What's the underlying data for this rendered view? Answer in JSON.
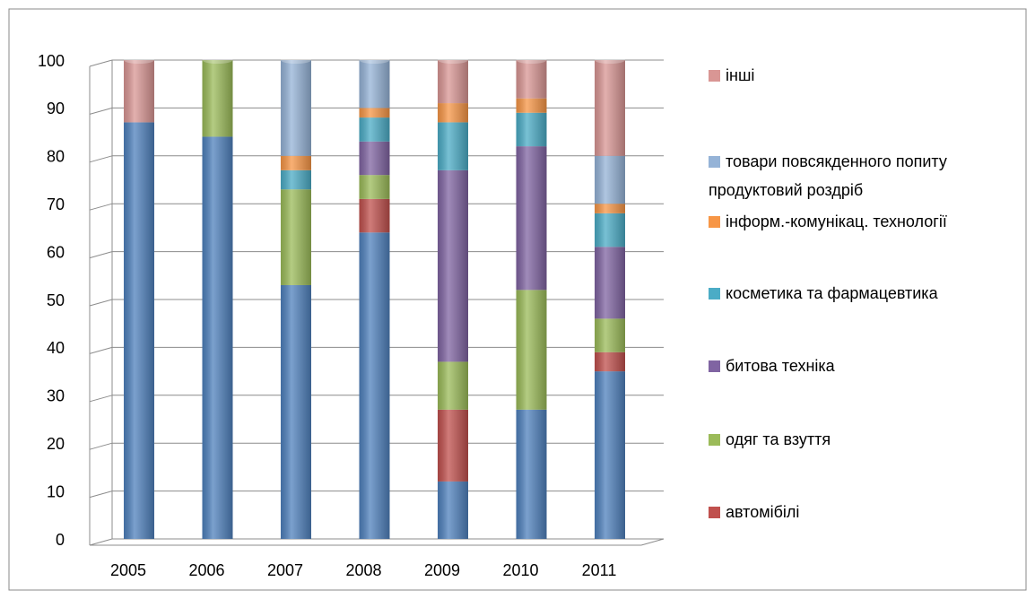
{
  "chart_data": {
    "type": "bar",
    "stacked": true,
    "categories": [
      "2005",
      "2006",
      "2007",
      "2008",
      "2009",
      "2010",
      "2011"
    ],
    "series": [
      {
        "color": "#4f81bd",
        "values": [
          87,
          84,
          53,
          64,
          12,
          27,
          35
        ]
      },
      {
        "name": "автомібілі",
        "color": "#c0504d",
        "values": [
          0,
          0,
          0,
          7,
          15,
          0,
          4
        ]
      },
      {
        "name": "одяг та взуття",
        "color": "#9bbb59",
        "values": [
          0,
          16,
          20,
          5,
          10,
          25,
          7
        ]
      },
      {
        "name": "битова техніка",
        "color": "#8064a2",
        "values": [
          0,
          0,
          0,
          7,
          40,
          30,
          15
        ]
      },
      {
        "name": "косметика та фармацевтика",
        "color": "#4bacc6",
        "values": [
          0,
          0,
          4,
          5,
          10,
          7,
          7
        ]
      },
      {
        "name": "інформ.-комунікац. технології",
        "color": "#f79646",
        "values": [
          0,
          0,
          3,
          2,
          4,
          3,
          2
        ]
      },
      {
        "name": "товари повсякденного попиту продуктовий роздріб",
        "color": "#95b3d7",
        "values": [
          0,
          0,
          20,
          10,
          0,
          0,
          10
        ]
      },
      {
        "name": "інші",
        "color": "#d99694",
        "values": [
          13,
          0,
          0,
          0,
          9,
          8,
          20
        ]
      }
    ],
    "ylim": [
      0,
      100
    ],
    "yticks": [
      0,
      10,
      20,
      30,
      40,
      50,
      60,
      70,
      80,
      90,
      100
    ],
    "grid": true,
    "legend": "right"
  }
}
